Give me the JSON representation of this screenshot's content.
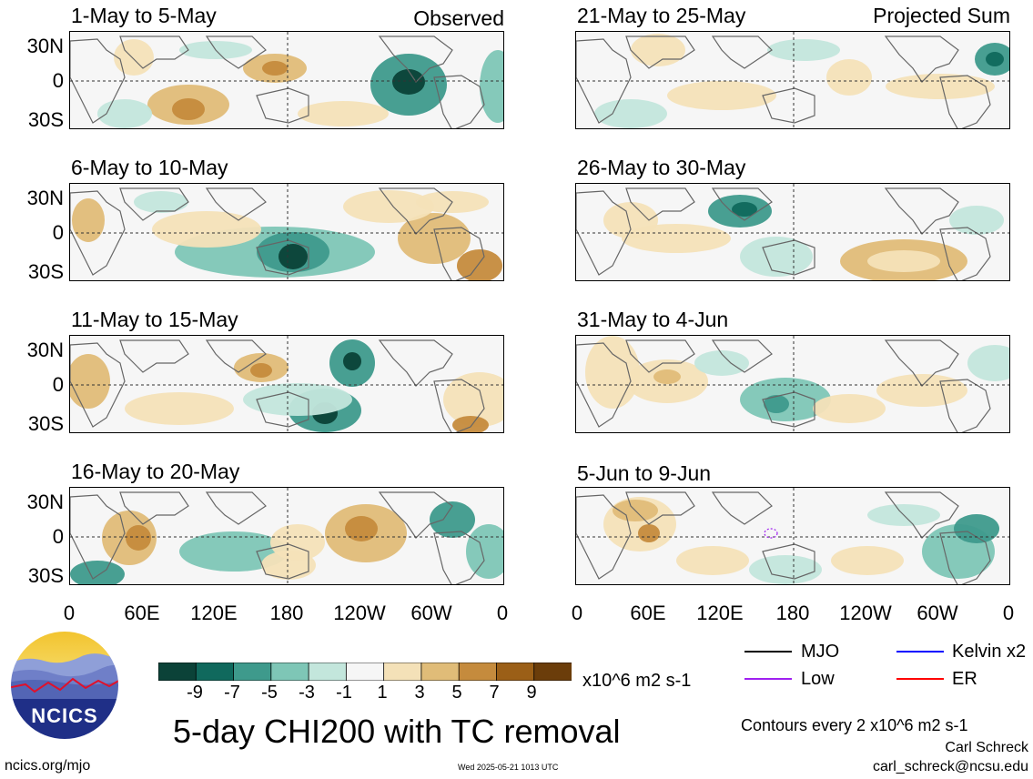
{
  "panels": [
    {
      "id": "p1",
      "title": "1-May to 5-May",
      "label": "Observed"
    },
    {
      "id": "p2",
      "title": "6-May to 10-May",
      "label": ""
    },
    {
      "id": "p3",
      "title": "11-May to 15-May",
      "label": ""
    },
    {
      "id": "p4",
      "title": "16-May to 20-May",
      "label": ""
    },
    {
      "id": "p5",
      "title": "21-May to 25-May",
      "label": "Projected Sum"
    },
    {
      "id": "p6",
      "title": "26-May to 30-May",
      "label": ""
    },
    {
      "id": "p7",
      "title": "31-May to 4-Jun",
      "label": ""
    },
    {
      "id": "p8",
      "title": "5-Jun to 9-Jun",
      "label": ""
    }
  ],
  "lat_ticks": [
    "30N",
    "0",
    "30S"
  ],
  "lon_ticks": [
    "0",
    "60E",
    "120E",
    "180",
    "120W",
    "60W",
    "0"
  ],
  "colorbar": {
    "labels": [
      "-9",
      "-7",
      "-5",
      "-3",
      "-1",
      "1",
      "3",
      "5",
      "7",
      "9"
    ],
    "colors": [
      "#0b4238",
      "#10695d",
      "#3e9a8c",
      "#7ec6b6",
      "#c3e6dc",
      "#f6f6f6",
      "#f4e1b8",
      "#e0bc78",
      "#c58b3d",
      "#9b5f17",
      "#6b3d0a"
    ],
    "units": "x10^6 m2 s-1"
  },
  "legend": {
    "items": [
      {
        "label": "MJO",
        "color": "#000000"
      },
      {
        "label": "Kelvin x2",
        "color": "#0000ff"
      },
      {
        "label": "Low",
        "color": "#a020f0"
      },
      {
        "label": "ER",
        "color": "#ff0000"
      }
    ],
    "contours": "Contours every 2 x10^6 m2 s-1",
    "author": "Carl Schreck",
    "email": "carl_schreck@ncsu.edu"
  },
  "logo_text": "NCICS",
  "main_title": "5-day CHI200 with TC removal",
  "website": "ncics.org/mjo",
  "timestamp": "Wed 2025-05-21 1013 UTC"
}
